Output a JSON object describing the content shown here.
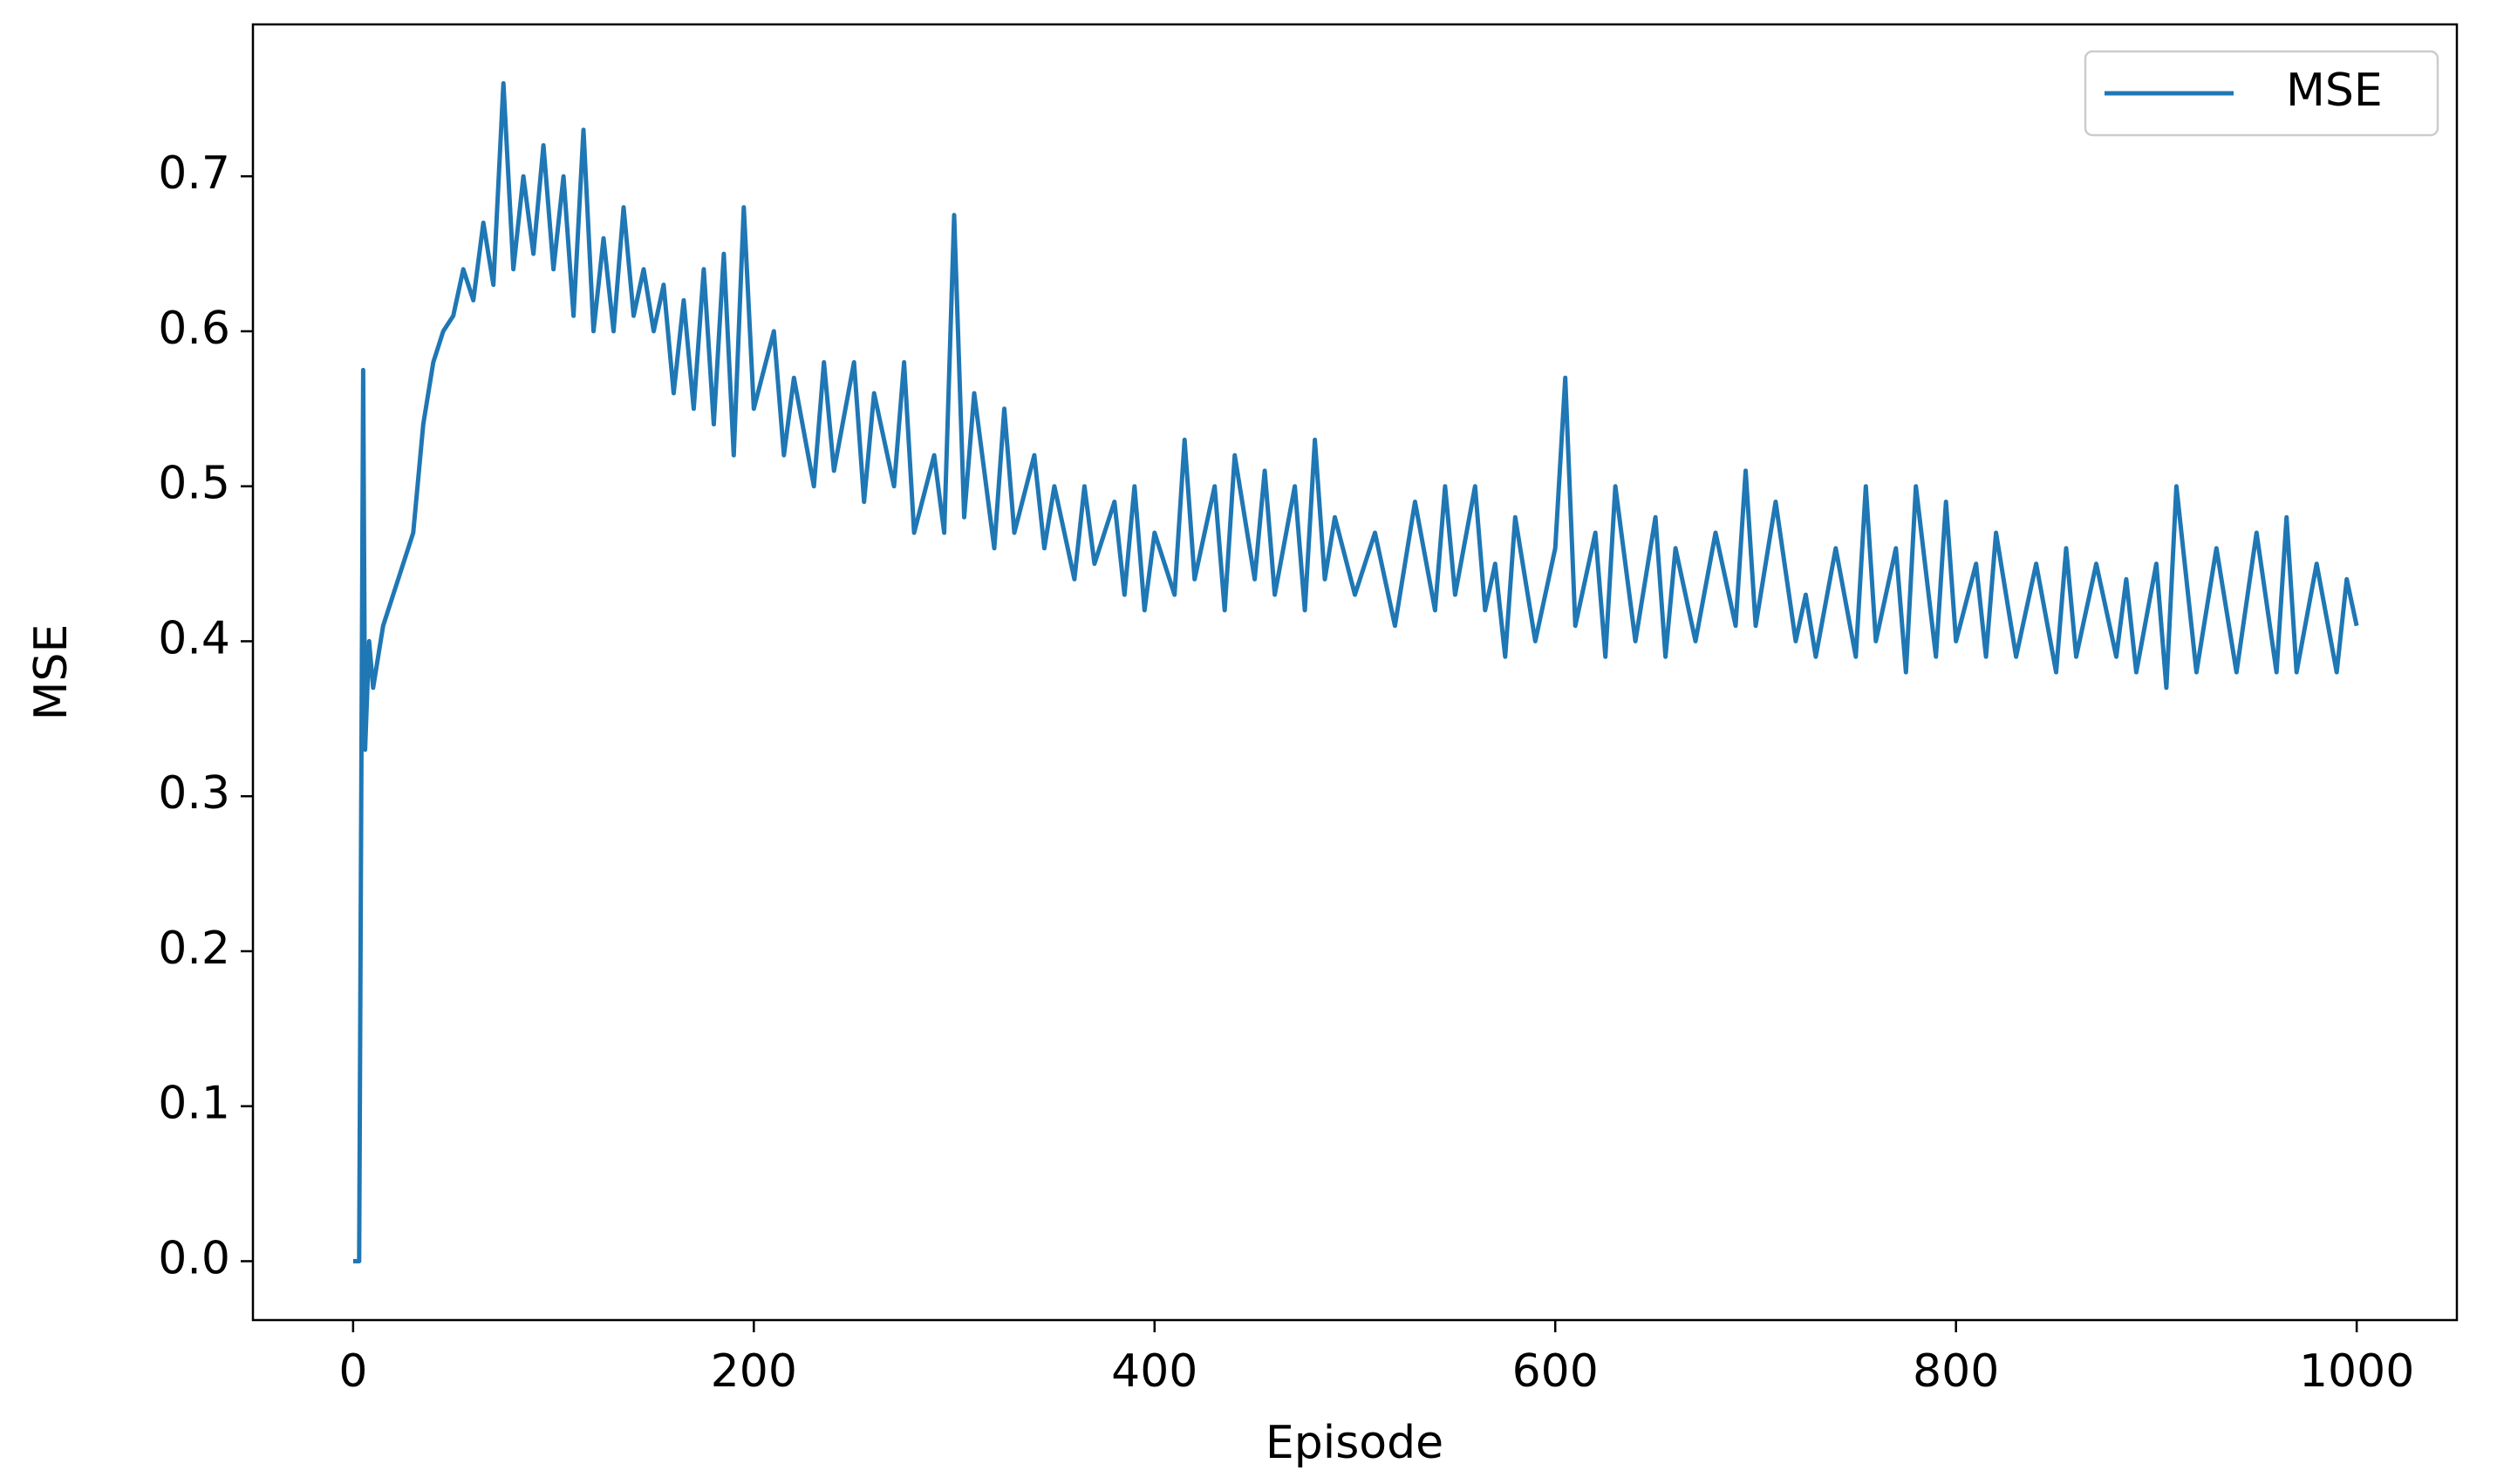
{
  "chart_data": {
    "type": "line",
    "xlabel": "Episode",
    "ylabel": "MSE",
    "x": [
      0,
      3,
      5,
      6,
      8,
      10,
      15,
      20,
      30,
      35,
      40,
      45,
      50,
      55,
      60,
      65,
      70,
      75,
      80,
      85,
      90,
      95,
      100,
      105,
      110,
      115,
      120,
      125,
      130,
      135,
      140,
      145,
      150,
      155,
      160,
      165,
      170,
      175,
      180,
      185,
      190,
      195,
      200,
      210,
      215,
      220,
      230,
      235,
      240,
      250,
      255,
      260,
      270,
      275,
      280,
      290,
      295,
      300,
      305,
      310,
      320,
      325,
      330,
      340,
      345,
      350,
      360,
      365,
      370,
      380,
      385,
      390,
      395,
      400,
      410,
      415,
      420,
      430,
      435,
      440,
      450,
      455,
      460,
      470,
      475,
      480,
      485,
      490,
      500,
      510,
      520,
      530,
      540,
      545,
      550,
      560,
      565,
      570,
      575,
      580,
      590,
      600,
      605,
      610,
      620,
      625,
      630,
      640,
      650,
      655,
      660,
      670,
      680,
      690,
      695,
      700,
      710,
      720,
      725,
      730,
      740,
      750,
      755,
      760,
      770,
      775,
      780,
      790,
      795,
      800,
      810,
      815,
      820,
      830,
      840,
      850,
      855,
      860,
      870,
      880,
      885,
      890,
      900,
      905,
      910,
      920,
      930,
      940,
      950,
      960,
      965,
      970,
      980,
      990,
      995,
      1000
    ],
    "series": [
      {
        "name": "MSE",
        "color": "#1f77b4",
        "values": [
          0.0,
          0.0,
          0.575,
          0.33,
          0.4,
          0.37,
          0.41,
          0.43,
          0.47,
          0.54,
          0.58,
          0.6,
          0.61,
          0.64,
          0.62,
          0.67,
          0.63,
          0.76,
          0.64,
          0.7,
          0.65,
          0.72,
          0.64,
          0.7,
          0.61,
          0.73,
          0.6,
          0.66,
          0.6,
          0.68,
          0.61,
          0.64,
          0.6,
          0.63,
          0.56,
          0.62,
          0.55,
          0.64,
          0.54,
          0.65,
          0.52,
          0.68,
          0.55,
          0.6,
          0.52,
          0.57,
          0.5,
          0.58,
          0.51,
          0.58,
          0.49,
          0.56,
          0.5,
          0.58,
          0.47,
          0.52,
          0.47,
          0.675,
          0.48,
          0.56,
          0.46,
          0.55,
          0.47,
          0.52,
          0.46,
          0.5,
          0.44,
          0.5,
          0.45,
          0.49,
          0.43,
          0.5,
          0.42,
          0.47,
          0.43,
          0.53,
          0.44,
          0.5,
          0.42,
          0.52,
          0.44,
          0.51,
          0.43,
          0.5,
          0.42,
          0.53,
          0.44,
          0.48,
          0.43,
          0.47,
          0.41,
          0.49,
          0.42,
          0.5,
          0.43,
          0.5,
          0.42,
          0.45,
          0.39,
          0.48,
          0.4,
          0.46,
          0.57,
          0.41,
          0.47,
          0.39,
          0.5,
          0.4,
          0.48,
          0.39,
          0.46,
          0.4,
          0.47,
          0.41,
          0.51,
          0.41,
          0.49,
          0.4,
          0.43,
          0.39,
          0.46,
          0.39,
          0.5,
          0.4,
          0.46,
          0.38,
          0.5,
          0.39,
          0.49,
          0.4,
          0.45,
          0.39,
          0.47,
          0.39,
          0.45,
          0.38,
          0.46,
          0.39,
          0.45,
          0.39,
          0.44,
          0.38,
          0.45,
          0.37,
          0.5,
          0.38,
          0.46,
          0.38,
          0.47,
          0.38,
          0.48,
          0.38,
          0.45,
          0.38,
          0.44,
          0.41
        ]
      }
    ],
    "xlim": [
      -50,
      1050
    ],
    "xticks": [
      0,
      200,
      400,
      600,
      800,
      1000
    ],
    "ylim": [
      -0.038,
      0.798
    ],
    "yticks": [
      {
        "value": 0,
        "label": "0.0"
      },
      0.1,
      0.2,
      0.3,
      0.4,
      0.5,
      0.6,
      0.7
    ],
    "grid": false,
    "legend": "upper right"
  }
}
